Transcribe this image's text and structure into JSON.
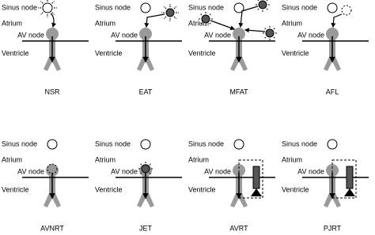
{
  "panels": [
    {
      "sinus_node": "Sinus node",
      "atrium": "Atrium",
      "av_node": "AV node",
      "ventricle": "Ventricle",
      "label": "NSR"
    },
    {
      "sinus_node": "Sinus node",
      "atrium": "Atrium",
      "av_node": "AV node",
      "ventricle": "Ventricle",
      "label": "EAT"
    },
    {
      "sinus_node": "Sinus node",
      "atrium": "Atrium",
      "av_node": "AV node",
      "ventricle": "Ventricle",
      "label": "MFAT"
    },
    {
      "sinus_node": "Sinus node",
      "atrium": "Atrium",
      "av_node": "AV node",
      "ventricle": "Ventricle",
      "label": "AFL"
    },
    {
      "sinus_node": "Sinus node",
      "atrium": "Atrium",
      "av_node": "AV node",
      "ventricle": "Ventricle",
      "label": "AVNRT"
    },
    {
      "sinus_node": "Sinus node",
      "atrium": "Atrium",
      "av_node": "AV node",
      "ventricle": "Ventricle",
      "label": "JET"
    },
    {
      "sinus_node": "Sinus node",
      "atrium": "Atrium",
      "av_node": "AV node",
      "ventricle": "Ventricle",
      "label": "AVRT"
    },
    {
      "sinus_node": "Sinus node",
      "atrium": "Atrium",
      "av_node": "AV node",
      "ventricle": "Ventricle",
      "label": "PJRT"
    }
  ]
}
